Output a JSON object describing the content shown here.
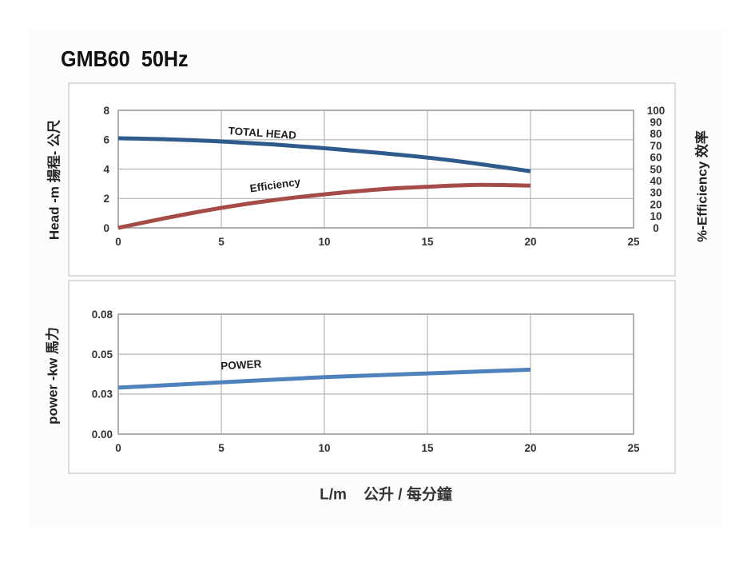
{
  "title": "GMB60  50Hz",
  "x_axis_title": "L/m    公升 / 每分鐘",
  "colors": {
    "head_line": "#2f5a8c",
    "efficiency_line": "#a54c48",
    "power_line": "#4f81bd",
    "gridline": "#b5b5b5",
    "plot_border": "#9a9a9a",
    "tick_text": "#333333",
    "series_label_text": "#1f1f1f",
    "panel_border": "#dcdcdc",
    "title_text": "#111111"
  },
  "chart_data": [
    {
      "type": "line",
      "x_ticks": [
        "0",
        "5",
        "10",
        "15",
        "20",
        "25"
      ],
      "x_range": [
        0,
        25
      ],
      "y_left": {
        "axis_label": "Head -m  揚程- 公尺",
        "ticks": [
          "0",
          "2",
          "4",
          "6",
          "8"
        ],
        "range": [
          0,
          8
        ]
      },
      "y_right": {
        "axis_label": "%-Efficiency 效率",
        "ticks": [
          "0",
          "10",
          "20",
          "30",
          "40",
          "50",
          "60",
          "70",
          "80",
          "90",
          "100"
        ],
        "range": [
          0,
          100
        ]
      },
      "series": [
        {
          "name": "TOTAL HEAD",
          "axis": "left",
          "color_key": "head_line",
          "x": [
            0,
            2.5,
            5,
            7.5,
            10,
            12.5,
            15,
            17.5,
            20
          ],
          "y": [
            6.1,
            6.02,
            5.88,
            5.68,
            5.42,
            5.12,
            4.78,
            4.35,
            3.85
          ]
        },
        {
          "name": "Efficiency",
          "axis": "right",
          "color_key": "efficiency_line",
          "x": [
            0,
            2.5,
            5,
            7.5,
            10,
            12.5,
            15,
            17.5,
            20
          ],
          "y": [
            0,
            9,
            17,
            23.5,
            28.5,
            32.5,
            35,
            36.5,
            36
          ]
        }
      ]
    },
    {
      "type": "line",
      "x_ticks": [
        "0",
        "5",
        "10",
        "15",
        "20",
        "25"
      ],
      "x_range": [
        0,
        25
      ],
      "y_left": {
        "axis_label": "power -kw 馬力",
        "ticks": [
          "0.00",
          "0.03",
          "0.05",
          "0.08"
        ],
        "range": [
          0,
          0.08
        ],
        "tick_positions": [
          0,
          0.0267,
          0.0533,
          0.08
        ]
      },
      "series": [
        {
          "name": "POWER",
          "axis": "left",
          "color_key": "power_line",
          "x": [
            0,
            5,
            10,
            15,
            20
          ],
          "y": [
            0.031,
            0.0345,
            0.038,
            0.0405,
            0.043
          ]
        }
      ]
    }
  ]
}
